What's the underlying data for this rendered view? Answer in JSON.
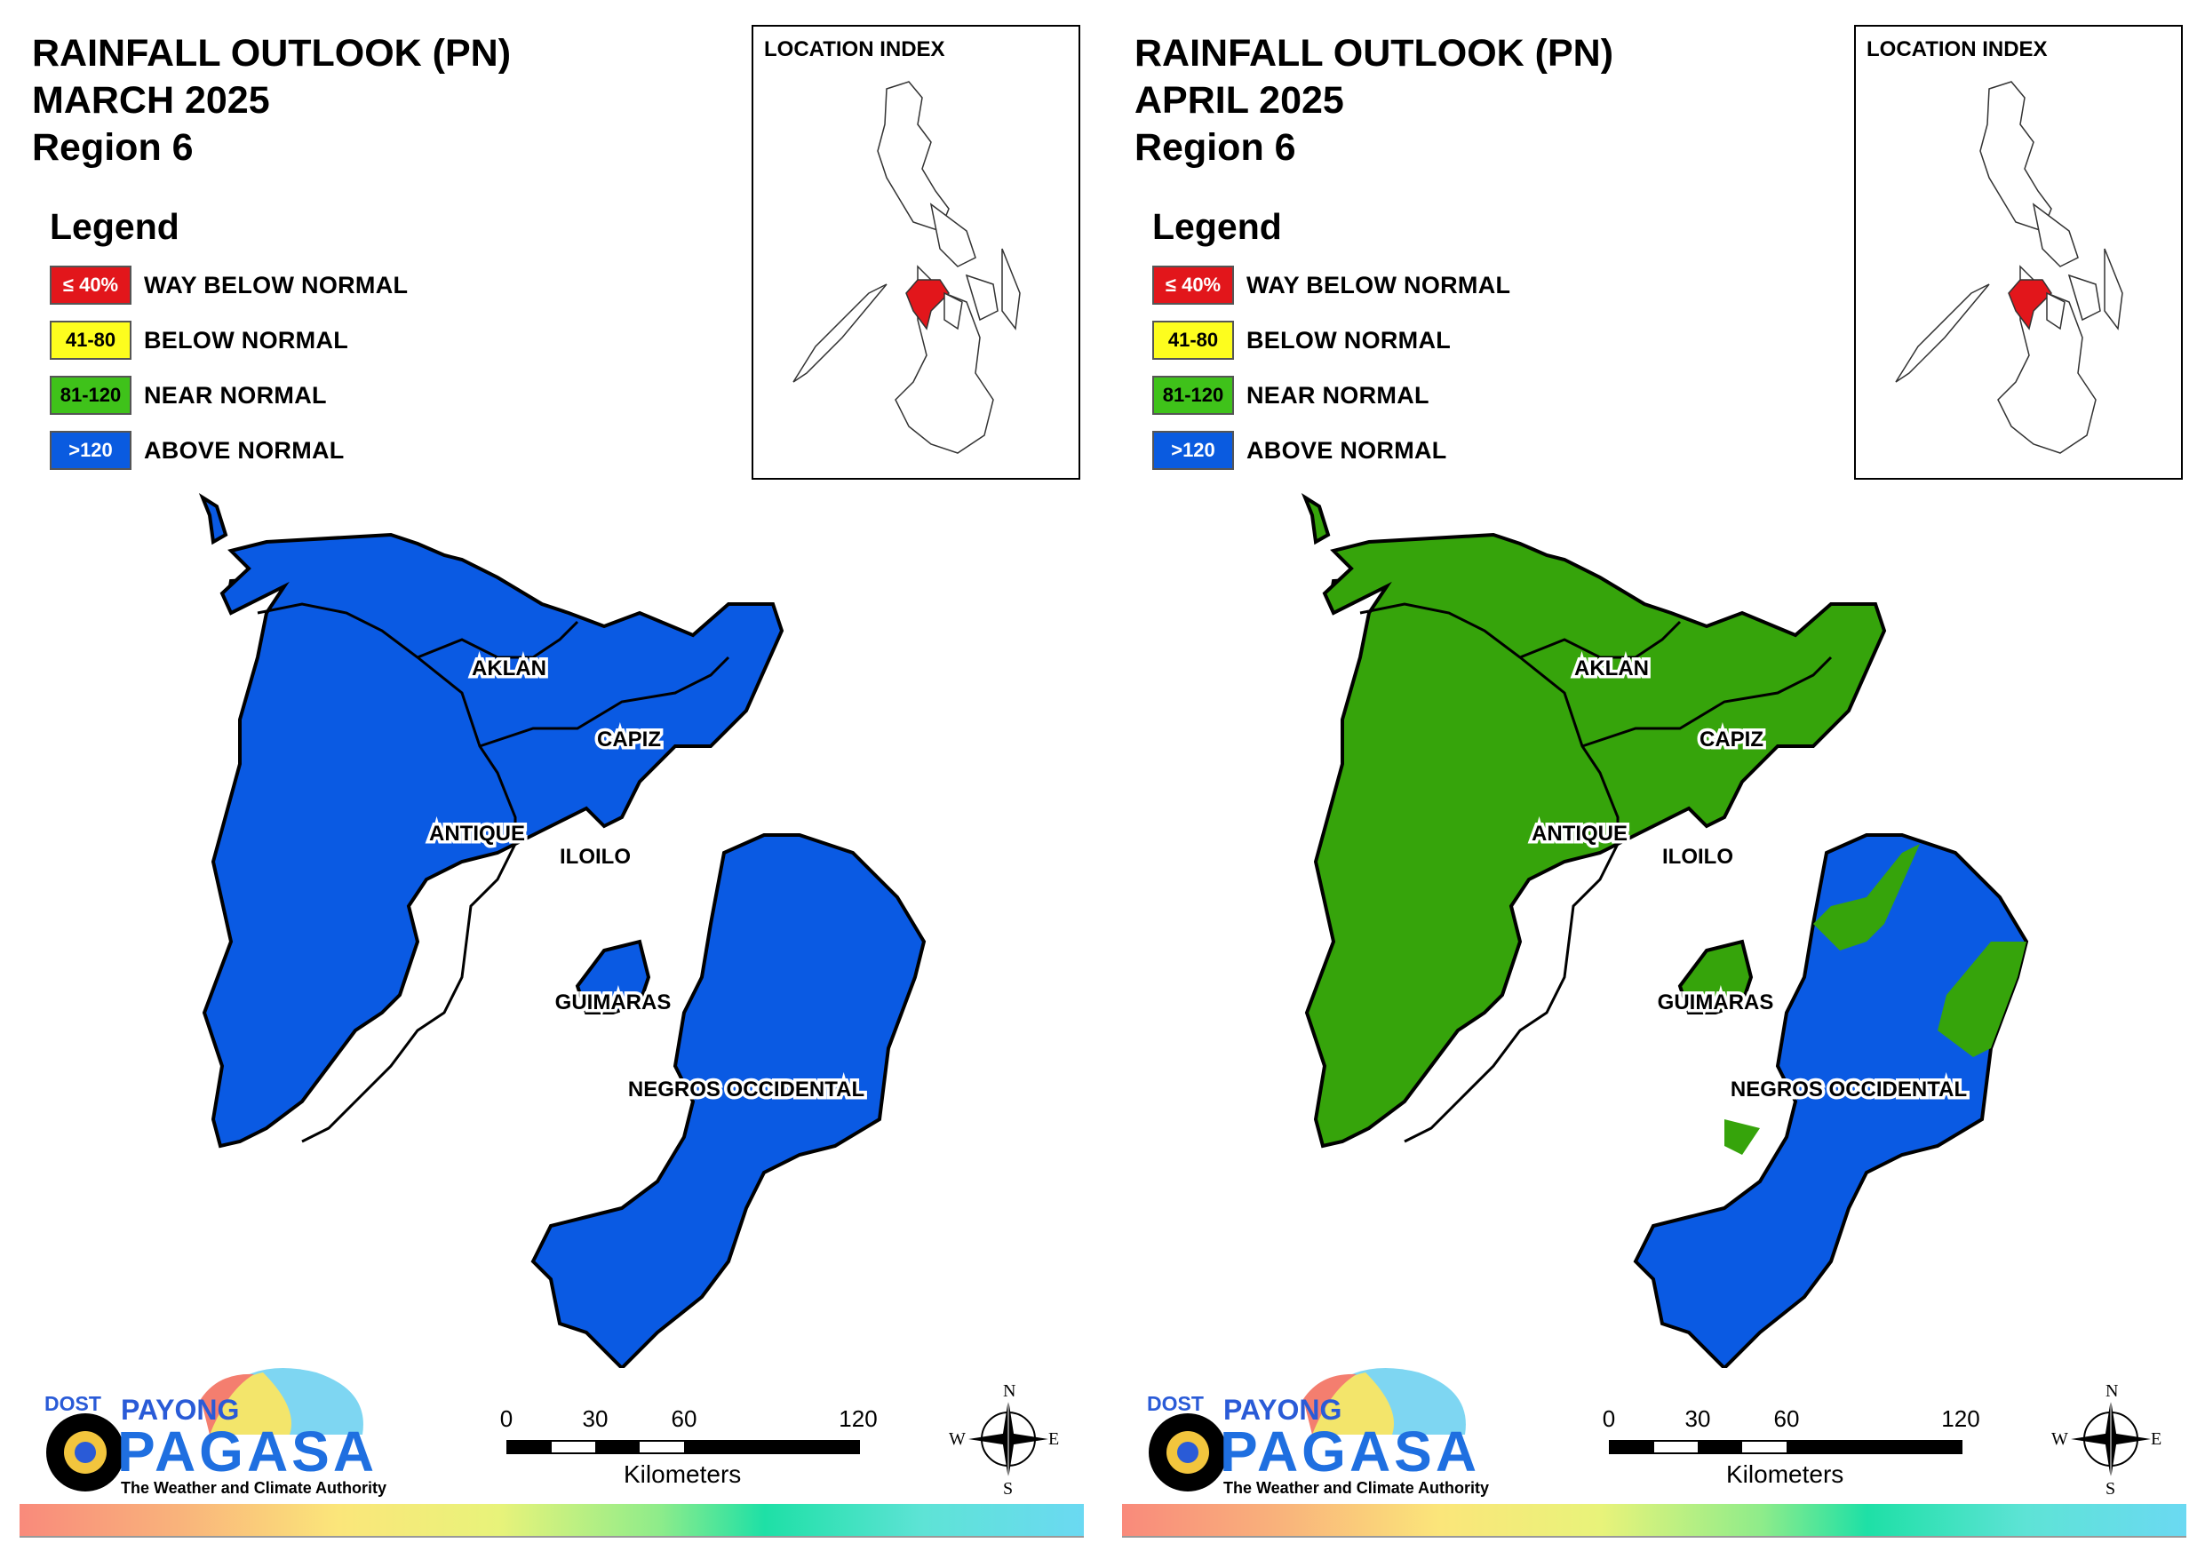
{
  "panels": [
    {
      "id": "march",
      "title_line1": "RAINFALL OUTLOOK (PN)",
      "title_line2": "MARCH 2025",
      "title_line3": "Region 6",
      "inset_title": "LOCATION INDEX",
      "dominant_category": "above-normal",
      "provinces": {
        "aklan": "AKLAN",
        "capiz": "CAPIZ",
        "antique": "ANTIQUE",
        "iloilo": "ILOILO",
        "guimaras": "GUIMARAS",
        "negros": "NEGROS OCCIDENTAL"
      },
      "province_outlook": {
        "aklan": "above-normal",
        "capiz": "above-normal",
        "antique": "above-normal",
        "iloilo": "above-normal",
        "guimaras": "above-normal",
        "negros": "above-normal"
      }
    },
    {
      "id": "april",
      "title_line1": "RAINFALL OUTLOOK (PN)",
      "title_line2": "APRIL 2025",
      "title_line3": "Region 6",
      "inset_title": "LOCATION INDEX",
      "dominant_category": "near-normal",
      "provinces": {
        "aklan": "AKLAN",
        "capiz": "CAPIZ",
        "antique": "ANTIQUE",
        "iloilo": "ILOILO",
        "guimaras": "GUIMARAS",
        "negros": "NEGROS OCCIDENTAL"
      },
      "province_outlook": {
        "aklan": "near-normal",
        "capiz": "near-normal",
        "antique": "near-normal",
        "iloilo": "near-normal",
        "guimaras": "near-normal",
        "negros": "above-normal (mostly), near-normal (north-east)"
      }
    }
  ],
  "legend": {
    "heading": "Legend",
    "items": [
      {
        "range": "≤ 40%",
        "label": "WAY BELOW NORMAL",
        "color": "#e2161b",
        "text_color": "#ffffff"
      },
      {
        "range": "41-80",
        "label": "BELOW NORMAL",
        "color": "#fdfd1e",
        "text_color": "#000000"
      },
      {
        "range": "81-120",
        "label": "NEAR NORMAL",
        "color": "#3fc21a",
        "text_color": "#000000"
      },
      {
        "range": ">120",
        "label": "ABOVE NORMAL",
        "color": "#0a5be0",
        "text_color": "#ffffff"
      }
    ]
  },
  "colors": {
    "above_normal": "#0a5ae3",
    "near_normal": "#36a40b",
    "inset_highlight": "#e2161b"
  },
  "logo": {
    "dost": "DOST",
    "payong": "PAYONG",
    "pagasa": "PAGASA",
    "tagline": "The Weather and Climate Authority"
  },
  "scale": {
    "ticks": [
      "0",
      "30",
      "60",
      "120"
    ],
    "unit": "Kilometers"
  },
  "compass": {
    "n": "N",
    "e": "E",
    "s": "S",
    "w": "W"
  }
}
